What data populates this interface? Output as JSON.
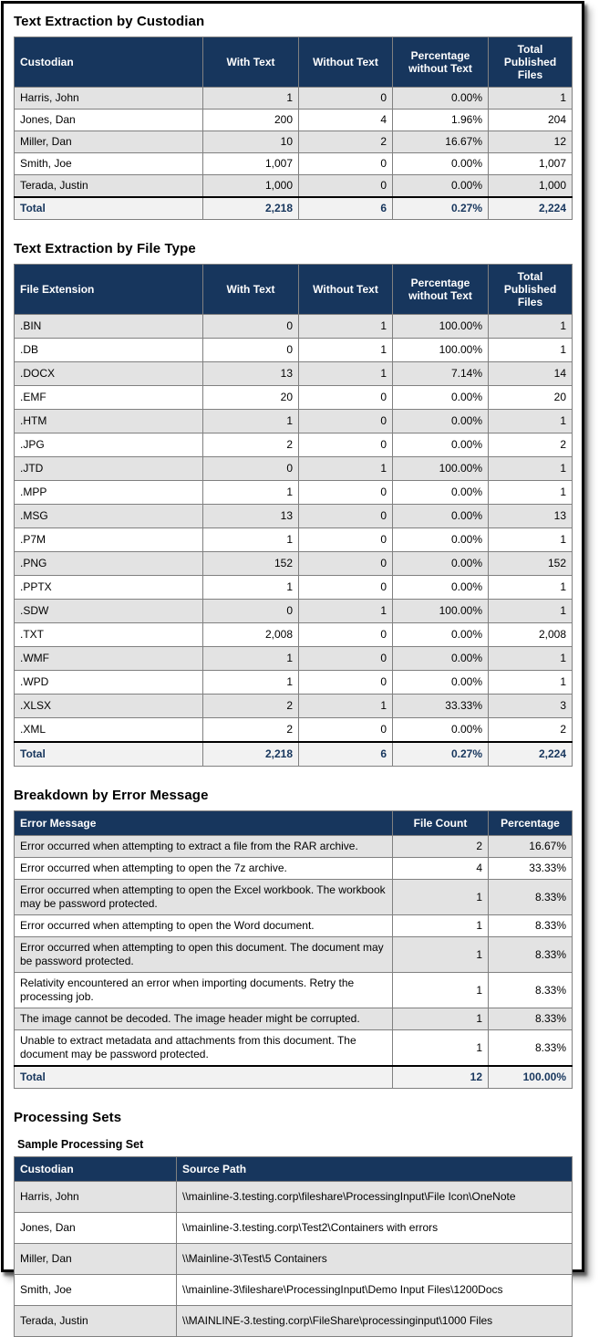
{
  "colors": {
    "header_bg": "#17365d",
    "header_text": "#ffffff",
    "row_alt_bg": "#e3e3e3",
    "total_row_bg": "#f2f2f2",
    "total_text": "#17365d",
    "grid_border": "#808080",
    "frame_border": "#000000"
  },
  "custodian_section": {
    "title": "Text Extraction by Custodian",
    "columns": [
      "Custodian",
      "With Text",
      "Without Text",
      "Percentage without Text",
      "Total Published Files"
    ],
    "rows": [
      {
        "label": "Harris, John",
        "with_text": "1",
        "without_text": "0",
        "pct": "0.00%",
        "total": "1"
      },
      {
        "label": "Jones, Dan",
        "with_text": "200",
        "without_text": "4",
        "pct": "1.96%",
        "total": "204"
      },
      {
        "label": "Miller, Dan",
        "with_text": "10",
        "without_text": "2",
        "pct": "16.67%",
        "total": "12"
      },
      {
        "label": "Smith, Joe",
        "with_text": "1,007",
        "without_text": "0",
        "pct": "0.00%",
        "total": "1,007"
      },
      {
        "label": "Terada, Justin",
        "with_text": "1,000",
        "without_text": "0",
        "pct": "0.00%",
        "total": "1,000"
      }
    ],
    "total": {
      "label": "Total",
      "with_text": "2,218",
      "without_text": "6",
      "pct": "0.27%",
      "total": "2,224"
    }
  },
  "filetype_section": {
    "title": "Text Extraction by File Type",
    "columns": [
      "File Extension",
      "With Text",
      "Without Text",
      "Percentage without Text",
      "Total Published Files"
    ],
    "rows": [
      {
        "label": ".BIN",
        "with_text": "0",
        "without_text": "1",
        "pct": "100.00%",
        "total": "1"
      },
      {
        "label": ".DB",
        "with_text": "0",
        "without_text": "1",
        "pct": "100.00%",
        "total": "1"
      },
      {
        "label": ".DOCX",
        "with_text": "13",
        "without_text": "1",
        "pct": "7.14%",
        "total": "14"
      },
      {
        "label": ".EMF",
        "with_text": "20",
        "without_text": "0",
        "pct": "0.00%",
        "total": "20"
      },
      {
        "label": ".HTM",
        "with_text": "1",
        "without_text": "0",
        "pct": "0.00%",
        "total": "1"
      },
      {
        "label": ".JPG",
        "with_text": "2",
        "without_text": "0",
        "pct": "0.00%",
        "total": "2"
      },
      {
        "label": ".JTD",
        "with_text": "0",
        "without_text": "1",
        "pct": "100.00%",
        "total": "1"
      },
      {
        "label": ".MPP",
        "with_text": "1",
        "without_text": "0",
        "pct": "0.00%",
        "total": "1"
      },
      {
        "label": ".MSG",
        "with_text": "13",
        "without_text": "0",
        "pct": "0.00%",
        "total": "13"
      },
      {
        "label": ".P7M",
        "with_text": "1",
        "without_text": "0",
        "pct": "0.00%",
        "total": "1"
      },
      {
        "label": ".PNG",
        "with_text": "152",
        "without_text": "0",
        "pct": "0.00%",
        "total": "152"
      },
      {
        "label": ".PPTX",
        "with_text": "1",
        "without_text": "0",
        "pct": "0.00%",
        "total": "1"
      },
      {
        "label": ".SDW",
        "with_text": "0",
        "without_text": "1",
        "pct": "100.00%",
        "total": "1"
      },
      {
        "label": ".TXT",
        "with_text": "2,008",
        "without_text": "0",
        "pct": "0.00%",
        "total": "2,008"
      },
      {
        "label": ".WMF",
        "with_text": "1",
        "without_text": "0",
        "pct": "0.00%",
        "total": "1"
      },
      {
        "label": ".WPD",
        "with_text": "1",
        "without_text": "0",
        "pct": "0.00%",
        "total": "1"
      },
      {
        "label": ".XLSX",
        "with_text": "2",
        "without_text": "1",
        "pct": "33.33%",
        "total": "3"
      },
      {
        "label": ".XML",
        "with_text": "2",
        "without_text": "0",
        "pct": "0.00%",
        "total": "2"
      }
    ],
    "total": {
      "label": "Total",
      "with_text": "2,218",
      "without_text": "6",
      "pct": "0.27%",
      "total": "2,224"
    }
  },
  "error_section": {
    "title": "Breakdown by Error Message",
    "columns": [
      "Error Message",
      "File Count",
      "Percentage"
    ],
    "rows": [
      {
        "label": "Error occurred when attempting to extract a file from the RAR archive.",
        "count": "2",
        "pct": "16.67%"
      },
      {
        "label": "Error occurred when attempting to open the 7z archive.",
        "count": "4",
        "pct": "33.33%"
      },
      {
        "label": "Error occurred when attempting to open the Excel workbook. The workbook may be password protected.",
        "count": "1",
        "pct": "8.33%"
      },
      {
        "label": "Error occurred when attempting to open the Word document.",
        "count": "1",
        "pct": "8.33%"
      },
      {
        "label": "Error occurred when attempting to open this document. The document may be password protected.",
        "count": "1",
        "pct": "8.33%"
      },
      {
        "label": "Relativity encountered an error when importing documents. Retry the processing job.",
        "count": "1",
        "pct": "8.33%"
      },
      {
        "label": "The image cannot be decoded. The image header might be corrupted.",
        "count": "1",
        "pct": "8.33%"
      },
      {
        "label": "Unable to extract metadata and attachments from this document. The document may be password protected.",
        "count": "1",
        "pct": "8.33%"
      }
    ],
    "total": {
      "label": "Total",
      "count": "12",
      "pct": "100.00%"
    }
  },
  "processing_sets_section": {
    "title": "Processing Sets",
    "set_name": "Sample Processing Set",
    "columns": [
      "Custodian",
      "Source Path"
    ],
    "rows": [
      {
        "label": "Harris, John",
        "path": "\\\\mainline-3.testing.corp\\fileshare\\ProcessingInput\\File Icon\\OneNote"
      },
      {
        "label": "Jones, Dan",
        "path": "\\\\mainline-3.testing.corp\\Test2\\Containers with errors"
      },
      {
        "label": "Miller, Dan",
        "path": "\\\\Mainline-3\\Test\\5 Containers"
      },
      {
        "label": "Smith, Joe",
        "path": "\\\\mainline-3\\fileshare\\ProcessingInput\\Demo Input Files\\1200Docs"
      },
      {
        "label": "Terada, Justin",
        "path": "\\\\MAINLINE-3.testing.corp\\FileShare\\processinginput\\1000 Files"
      }
    ]
  }
}
